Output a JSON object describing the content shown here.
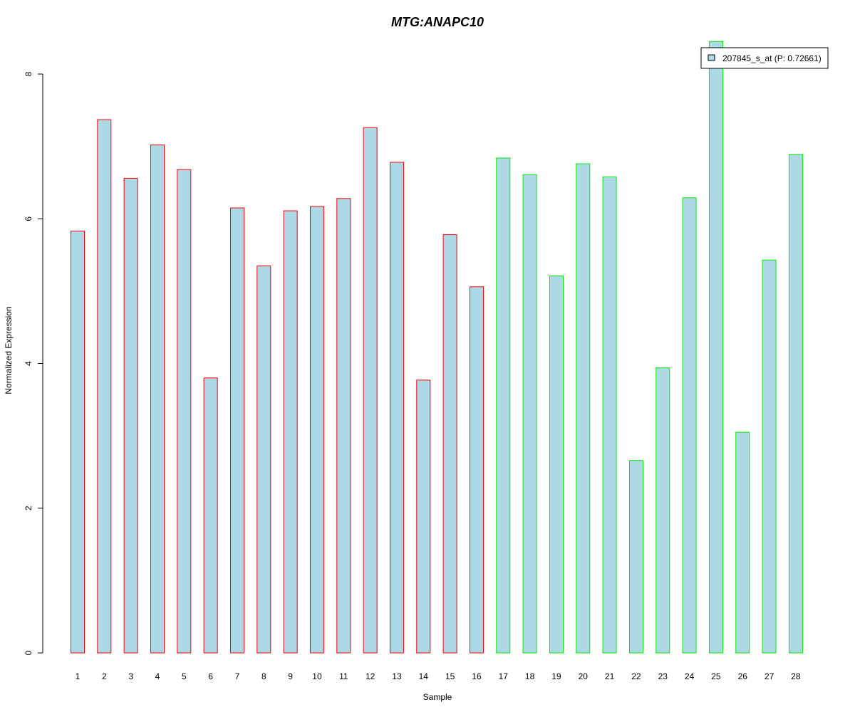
{
  "chart_data": {
    "type": "bar",
    "title": "MTG:ANAPC10",
    "xlabel": "Sample",
    "ylabel": "Normalized Expression",
    "categories": [
      "1",
      "2",
      "3",
      "4",
      "5",
      "6",
      "7",
      "8",
      "9",
      "10",
      "11",
      "12",
      "13",
      "14",
      "15",
      "16",
      "17",
      "18",
      "19",
      "20",
      "21",
      "22",
      "23",
      "24",
      "25",
      "26",
      "27",
      "28"
    ],
    "series": [
      {
        "name": "207845_s_at (P: 0.72661)",
        "values": [
          5.83,
          7.37,
          6.56,
          7.02,
          6.68,
          3.8,
          6.15,
          5.35,
          6.11,
          6.17,
          6.28,
          7.26,
          6.78,
          3.77,
          5.78,
          5.06,
          6.84,
          6.61,
          5.21,
          6.76,
          6.58,
          2.66,
          3.94,
          6.29,
          8.45,
          3.05,
          5.43,
          6.89
        ]
      }
    ],
    "groups": [
      {
        "from": 1,
        "to": 16,
        "border_color": "#ff0000"
      },
      {
        "from": 17,
        "to": 28,
        "border_color": "#00ee00"
      }
    ],
    "ylim": [
      0,
      8
    ],
    "yticks": [
      "0",
      "2",
      "4",
      "6",
      "8"
    ],
    "grid": false,
    "legend_position": "top-right",
    "colors": {
      "title": "#0000cc",
      "bar_fill": "#add8e6",
      "axis": "#000000"
    }
  }
}
